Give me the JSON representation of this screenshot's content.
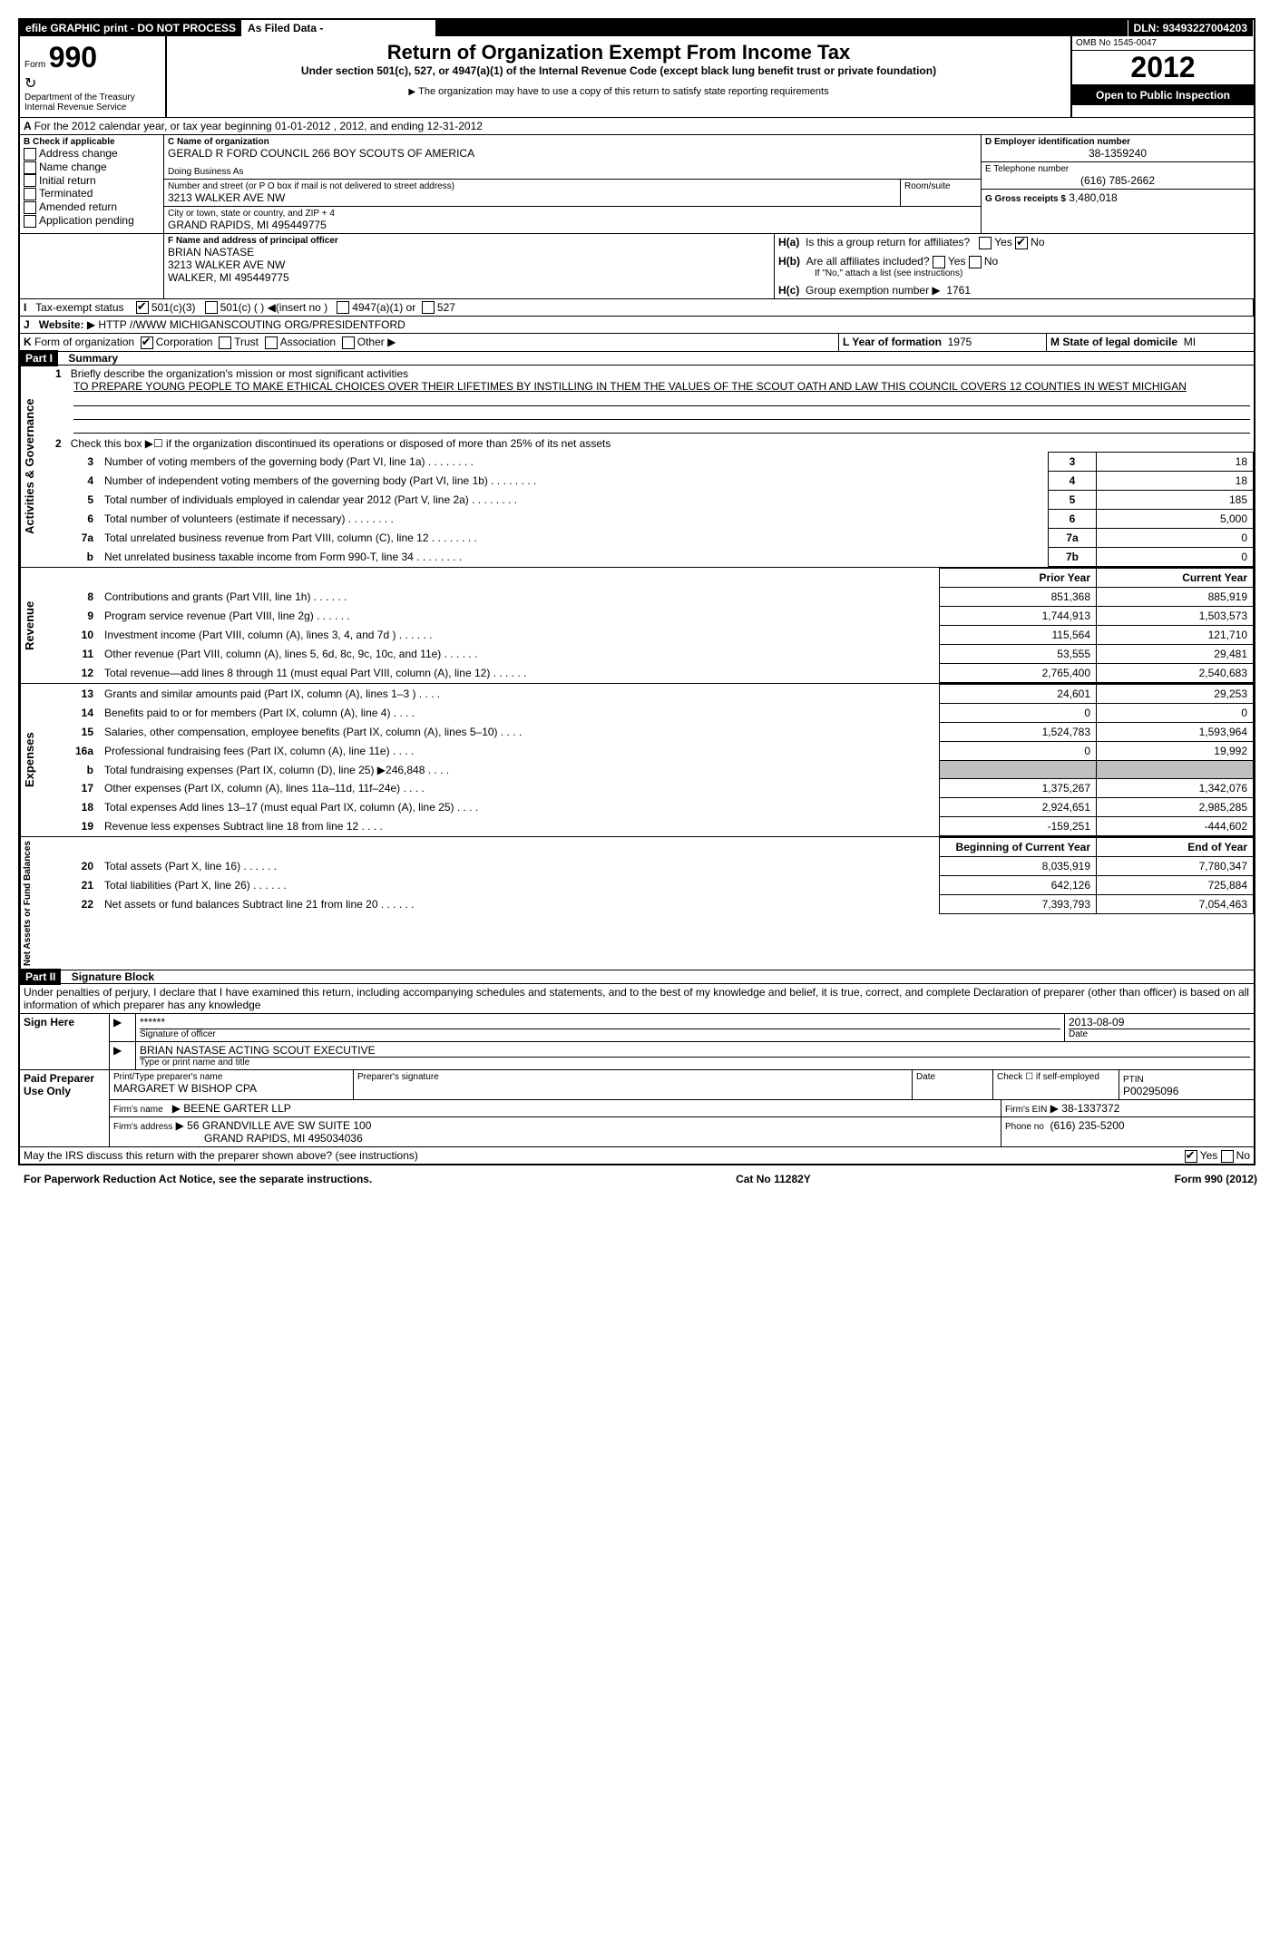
{
  "header": {
    "efile": "efile GRAPHIC print - DO NOT PROCESS",
    "asfiled": "As Filed Data -",
    "dln_label": "DLN:",
    "dln": "93493227004203",
    "form_word": "Form",
    "form_num": "990",
    "dept": "Department of the Treasury",
    "irs": "Internal Revenue Service",
    "title": "Return of Organization Exempt From Income Tax",
    "subtitle": "Under section 501(c), 527, or 4947(a)(1) of the Internal Revenue Code (except black lung benefit trust or private foundation)",
    "note": "The organization may have to use a copy of this return to satisfy state reporting requirements",
    "omb_label": "OMB No",
    "omb": "1545-0047",
    "year": "2012",
    "open": "Open to Public Inspection"
  },
  "sectionA": {
    "line": "For the 2012 calendar year, or tax year beginning 01-01-2012    , 2012, and ending 12-31-2012",
    "b_label": "B  Check if applicable",
    "checks": [
      "Address change",
      "Name change",
      "Initial return",
      "Terminated",
      "Amended return",
      "Application pending"
    ],
    "c_label": "C Name of organization",
    "org_name": "GERALD R FORD COUNCIL 266 BOY SCOUTS OF AMERICA",
    "dba": "Doing Business As",
    "street_label": "Number and street (or P O  box if mail is not delivered to street address)",
    "room": "Room/suite",
    "street": "3213 WALKER AVE NW",
    "city_label": "City or town, state or country, and ZIP + 4",
    "city": "GRAND RAPIDS, MI  495449775",
    "d_label": "D Employer identification number",
    "ein": "38-1359240",
    "e_label": "E Telephone number",
    "phone": "(616) 785-2662",
    "g_label": "G Gross receipts $",
    "gross": "3,480,018",
    "f_label": "F  Name and address of principal officer",
    "officer_name": "BRIAN NASTASE",
    "officer_addr1": "3213 WALKER AVE NW",
    "officer_addr2": "WALKER, MI  495449775",
    "ha_label": "Is this a group return for affiliates?",
    "hb_label": "Are all affiliates included?",
    "hb_note": "If \"No,\" attach a list  (see instructions)",
    "hc_label": "Group exemption number",
    "hc_val": "1761",
    "i_label": "Tax-exempt status",
    "i_opts": [
      "501(c)(3)",
      "501(c) (   )",
      "(insert no )",
      "4947(a)(1) or",
      "527"
    ],
    "j_label": "Website:",
    "website": "HTTP //WWW MICHIGANSCOUTING ORG/PRESIDENTFORD",
    "k_label": "Form of organization",
    "k_opts": [
      "Corporation",
      "Trust",
      "Association",
      "Other"
    ],
    "l_label": "L Year of formation",
    "l_val": "1975",
    "m_label": "M State of legal domicile",
    "m_val": "MI",
    "yes": "Yes",
    "no": "No",
    "ha": "H(a)",
    "hb": "H(b)",
    "hc": "H(c)"
  },
  "part1": {
    "header": "Part I",
    "title": "Summary",
    "gov_label": "Activities & Governance",
    "rev_label": "Revenue",
    "exp_label": "Expenses",
    "net_label": "Net Assets or Fund Balances",
    "l1": "Briefly describe the organization's mission or most significant activities",
    "l1_text": "TO PREPARE YOUNG PEOPLE TO MAKE ETHICAL CHOICES OVER THEIR LIFETIMES BY INSTILLING IN THEM THE VALUES OF THE SCOUT OATH AND LAW  THIS COUNCIL COVERS 12 COUNTIES IN WEST MICHIGAN",
    "l2": "Check this box ▶☐ if the organization discontinued its operations or disposed of more than 25% of its net assets",
    "rows_gov": [
      {
        "n": "3",
        "t": "Number of voting members of the governing body (Part VI, line 1a)",
        "box": "3",
        "v": "18"
      },
      {
        "n": "4",
        "t": "Number of independent voting members of the governing body (Part VI, line 1b)",
        "box": "4",
        "v": "18"
      },
      {
        "n": "5",
        "t": "Total number of individuals employed in calendar year 2012 (Part V, line 2a)",
        "box": "5",
        "v": "185"
      },
      {
        "n": "6",
        "t": "Total number of volunteers (estimate if necessary)",
        "box": "6",
        "v": "5,000"
      },
      {
        "n": "7a",
        "t": "Total unrelated business revenue from Part VIII, column (C), line 12",
        "box": "7a",
        "v": "0"
      },
      {
        "n": "b",
        "t": "Net unrelated business taxable income from Form 990-T, line 34",
        "box": "7b",
        "v": "0"
      }
    ],
    "py": "Prior Year",
    "cy": "Current Year",
    "rows_rev": [
      {
        "n": "8",
        "t": "Contributions and grants (Part VIII, line 1h)",
        "py": "851,368",
        "cy": "885,919"
      },
      {
        "n": "9",
        "t": "Program service revenue (Part VIII, line 2g)",
        "py": "1,744,913",
        "cy": "1,503,573"
      },
      {
        "n": "10",
        "t": "Investment income (Part VIII, column (A), lines 3, 4, and 7d )",
        "py": "115,564",
        "cy": "121,710"
      },
      {
        "n": "11",
        "t": "Other revenue (Part VIII, column (A), lines 5, 6d, 8c, 9c, 10c, and 11e)",
        "py": "53,555",
        "cy": "29,481"
      },
      {
        "n": "12",
        "t": "Total revenue—add lines 8 through 11 (must equal Part VIII, column (A), line 12)",
        "py": "2,765,400",
        "cy": "2,540,683"
      }
    ],
    "rows_exp": [
      {
        "n": "13",
        "t": "Grants and similar amounts paid (Part IX, column (A), lines 1–3 )",
        "py": "24,601",
        "cy": "29,253"
      },
      {
        "n": "14",
        "t": "Benefits paid to or for members (Part IX, column (A), line 4)",
        "py": "0",
        "cy": "0"
      },
      {
        "n": "15",
        "t": "Salaries, other compensation, employee benefits (Part IX, column (A), lines 5–10)",
        "py": "1,524,783",
        "cy": "1,593,964"
      },
      {
        "n": "16a",
        "t": "Professional fundraising fees (Part IX, column (A), line 11e)",
        "py": "0",
        "cy": "19,992"
      },
      {
        "n": "b",
        "t": "Total fundraising expenses (Part IX, column (D), line 25) ▶246,848",
        "py": "",
        "cy": ""
      },
      {
        "n": "17",
        "t": "Other expenses (Part IX, column (A), lines 11a–11d, 11f–24e)",
        "py": "1,375,267",
        "cy": "1,342,076"
      },
      {
        "n": "18",
        "t": "Total expenses  Add lines 13–17 (must equal Part IX, column (A), line 25)",
        "py": "2,924,651",
        "cy": "2,985,285"
      },
      {
        "n": "19",
        "t": "Revenue less expenses  Subtract line 18 from line 12",
        "py": "-159,251",
        "cy": "-444,602"
      }
    ],
    "boy": "Beginning of Current Year",
    "eoy": "End of Year",
    "rows_net": [
      {
        "n": "20",
        "t": "Total assets (Part X, line 16)",
        "py": "8,035,919",
        "cy": "7,780,347"
      },
      {
        "n": "21",
        "t": "Total liabilities (Part X, line 26)",
        "py": "642,126",
        "cy": "725,884"
      },
      {
        "n": "22",
        "t": "Net assets or fund balances  Subtract line 21 from line 20",
        "py": "7,393,793",
        "cy": "7,054,463"
      }
    ]
  },
  "part2": {
    "header": "Part II",
    "title": "Signature Block",
    "perjury": "Under penalties of perjury, I declare that I have examined this return, including accompanying schedules and statements, and to the best of my knowledge and belief, it is true, correct, and complete  Declaration of preparer (other than officer) is based on all information of which preparer has any knowledge",
    "sign_here": "Sign Here",
    "sig_stars": "******",
    "sig_officer": "Signature of officer",
    "sig_date_label": "Date",
    "sig_date": "2013-08-09",
    "sig_name": "BRIAN NASTASE ACTING SCOUT EXECUTIVE",
    "sig_name_label": "Type or print name and title",
    "paid": "Paid Preparer Use Only",
    "prep_name_label": "Print/Type preparer's name",
    "prep_name": "MARGARET W BISHOP CPA",
    "prep_sig": "Preparer's signature",
    "date": "Date",
    "check_self": "Check ☐ if self-employed",
    "ptin_label": "PTIN",
    "ptin": "P00295096",
    "firm_name_label": "Firm's name",
    "firm_name": "BEENE GARTER LLP",
    "firm_ein_label": "Firm's EIN",
    "firm_ein": "38-1337372",
    "firm_addr_label": "Firm's address",
    "firm_addr1": "56 GRANDVILLE AVE SW SUITE 100",
    "firm_addr2": "GRAND RAPIDS, MI  495034036",
    "firm_phone_label": "Phone no",
    "firm_phone": "(616) 235-5200",
    "discuss": "May the IRS discuss this return with the preparer shown above? (see instructions)"
  },
  "footer": {
    "pra": "For Paperwork Reduction Act Notice, see the separate instructions.",
    "cat": "Cat No  11282Y",
    "form": "Form 990 (2012)"
  }
}
